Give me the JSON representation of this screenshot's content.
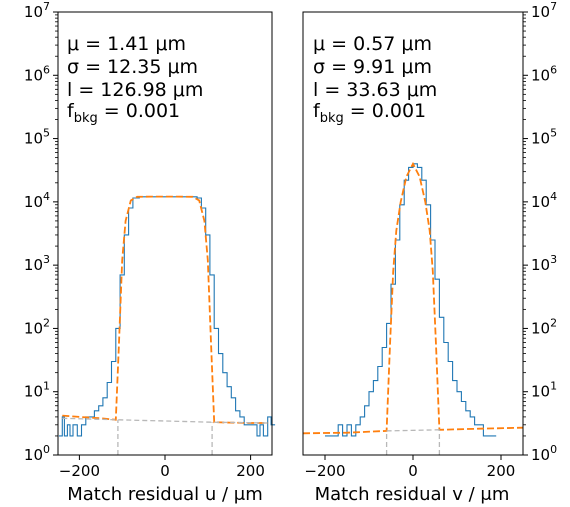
{
  "chart_data": [
    {
      "type": "line",
      "scale": {
        "y": "log"
      },
      "xlim": [
        -250,
        250
      ],
      "ylim": [
        1,
        10000000
      ],
      "xticks": [
        -200,
        0,
        200
      ],
      "xtick_labels": [
        "−200",
        "0",
        "200"
      ],
      "yticks": [
        1,
        10,
        100,
        1000,
        10000,
        100000,
        1000000,
        10000000
      ],
      "ytick_exponents": [
        "0",
        "1",
        "2",
        "3",
        "4",
        "5",
        "6",
        "7"
      ],
      "ytick_base": "10",
      "ytick_side": "left",
      "xlabel": "Match residual u / μm",
      "annotation": {
        "mu": "μ = 1.41 μm",
        "sigma": "σ = 12.35 μm",
        "l": "l = 126.98 μm",
        "fbkg_prefix": "f",
        "fbkg_sub": "bkg",
        "fbkg_suffix": " = 0.001"
      },
      "series": [
        {
          "style": "histogram",
          "color": "#1f77b4",
          "points": [
            [
              -248,
              2
            ],
            [
              -240,
              4
            ],
            [
              -235,
              2
            ],
            [
              -228,
              3
            ],
            [
              -222,
              2
            ],
            [
              -215,
              3
            ],
            [
              -205,
              2
            ],
            [
              -195,
              3
            ],
            [
              -185,
              4
            ],
            [
              -175,
              4
            ],
            [
              -165,
              5
            ],
            [
              -155,
              6
            ],
            [
              -145,
              8
            ],
            [
              -135,
              14
            ],
            [
              -125,
              30
            ],
            [
              -115,
              100
            ],
            [
              -105,
              700
            ],
            [
              -95,
              3000
            ],
            [
              -85,
              8000
            ],
            [
              -75,
              11500
            ],
            [
              -60,
              12000
            ],
            [
              0,
              12000
            ],
            [
              60,
              12000
            ],
            [
              75,
              11500
            ],
            [
              85,
              8000
            ],
            [
              95,
              3000
            ],
            [
              105,
              700
            ],
            [
              115,
              100
            ],
            [
              125,
              40
            ],
            [
              135,
              20
            ],
            [
              145,
              12
            ],
            [
              155,
              8
            ],
            [
              165,
              5
            ],
            [
              175,
              4
            ],
            [
              185,
              3
            ],
            [
              195,
              3
            ],
            [
              205,
              3
            ],
            [
              215,
              2
            ],
            [
              222,
              3
            ],
            [
              230,
              2
            ],
            [
              240,
              4
            ],
            [
              248,
              3
            ]
          ]
        },
        {
          "style": "fit",
          "color": "#ff7f0e",
          "points": [
            [
              -240,
              4.2
            ],
            [
              -200,
              4.0
            ],
            [
              -150,
              3.8
            ],
            [
              -115,
              3.6
            ],
            [
              -108,
              50
            ],
            [
              -100,
              1200
            ],
            [
              -92,
              5000
            ],
            [
              -80,
              10500
            ],
            [
              -65,
              12000
            ],
            [
              -20,
              12100
            ],
            [
              20,
              12100
            ],
            [
              65,
              12000
            ],
            [
              80,
              10500
            ],
            [
              92,
              5000
            ],
            [
              100,
              1200
            ],
            [
              108,
              50
            ],
            [
              115,
              3.3
            ],
            [
              150,
              3.25
            ],
            [
              200,
              3.2
            ],
            [
              240,
              3.2
            ]
          ]
        },
        {
          "style": "background",
          "color": "#b8b8b8",
          "points": [
            [
              -240,
              3.8
            ],
            [
              -110,
              3.6
            ],
            [
              110,
              3.3
            ],
            [
              240,
              3.2
            ]
          ]
        },
        {
          "style": "background",
          "color": "#b8b8b8",
          "points": [
            [
              -110,
              1
            ],
            [
              -110,
              3.6
            ]
          ]
        },
        {
          "style": "background",
          "color": "#b8b8b8",
          "points": [
            [
              110,
              1
            ],
            [
              110,
              3.3
            ]
          ]
        }
      ]
    },
    {
      "type": "line",
      "scale": {
        "y": "log"
      },
      "xlim": [
        -250,
        250
      ],
      "ylim": [
        1,
        10000000
      ],
      "xticks": [
        -200,
        0,
        200
      ],
      "xtick_labels": [
        "−200",
        "0",
        "200"
      ],
      "yticks": [
        1,
        10,
        100,
        1000,
        10000,
        100000,
        1000000,
        10000000
      ],
      "ytick_exponents": [
        "0",
        "1",
        "2",
        "3",
        "4",
        "5",
        "6",
        "7"
      ],
      "ytick_base": "10",
      "ytick_side": "right",
      "xlabel": "Match residual v / μm",
      "annotation": {
        "mu": "μ = 0.57 μm",
        "sigma": "σ = 9.91 μm",
        "l": "l = 33.63 μm",
        "fbkg_prefix": "f",
        "fbkg_sub": "bkg",
        "fbkg_suffix": " = 0.001"
      },
      "series": [
        {
          "style": "histogram",
          "color": "#1f77b4",
          "points": [
            [
              -200,
              2
            ],
            [
              -185,
              2
            ],
            [
              -170,
              3
            ],
            [
              -160,
              2
            ],
            [
              -150,
              3
            ],
            [
              -140,
              2
            ],
            [
              -130,
              3
            ],
            [
              -120,
              4
            ],
            [
              -110,
              6
            ],
            [
              -100,
              10
            ],
            [
              -90,
              15
            ],
            [
              -80,
              25
            ],
            [
              -70,
              50
            ],
            [
              -60,
              120
            ],
            [
              -50,
              500
            ],
            [
              -40,
              2500
            ],
            [
              -30,
              9000
            ],
            [
              -20,
              22000
            ],
            [
              -10,
              35000
            ],
            [
              0,
              40000
            ],
            [
              10,
              35000
            ],
            [
              20,
              22000
            ],
            [
              30,
              9000
            ],
            [
              40,
              2500
            ],
            [
              50,
              600
            ],
            [
              60,
              150
            ],
            [
              70,
              60
            ],
            [
              80,
              30
            ],
            [
              90,
              15
            ],
            [
              100,
              10
            ],
            [
              110,
              7
            ],
            [
              120,
              5
            ],
            [
              130,
              4
            ],
            [
              140,
              3
            ],
            [
              150,
              3
            ],
            [
              160,
              2
            ],
            [
              170,
              2
            ],
            [
              180,
              2
            ]
          ]
        },
        {
          "style": "fit",
          "color": "#ff7f0e",
          "points": [
            [
              -250,
              2.2
            ],
            [
              -150,
              2.25
            ],
            [
              -60,
              2.4
            ],
            [
              -52,
              60
            ],
            [
              -45,
              800
            ],
            [
              -38,
              3500
            ],
            [
              -28,
              10000
            ],
            [
              -15,
              25000
            ],
            [
              0,
              40000
            ],
            [
              15,
              25000
            ],
            [
              28,
              10000
            ],
            [
              38,
              3500
            ],
            [
              45,
              800
            ],
            [
              52,
              60
            ],
            [
              60,
              2.5
            ],
            [
              150,
              2.6
            ],
            [
              250,
              2.7
            ]
          ]
        },
        {
          "style": "background",
          "color": "#b8b8b8",
          "points": [
            [
              -60,
              2.4
            ],
            [
              60,
              2.5
            ]
          ]
        },
        {
          "style": "background",
          "color": "#b8b8b8",
          "points": [
            [
              -60,
              1
            ],
            [
              -60,
              2.4
            ]
          ]
        },
        {
          "style": "background",
          "color": "#b8b8b8",
          "points": [
            [
              60,
              1
            ],
            [
              60,
              2.5
            ]
          ]
        }
      ]
    }
  ]
}
